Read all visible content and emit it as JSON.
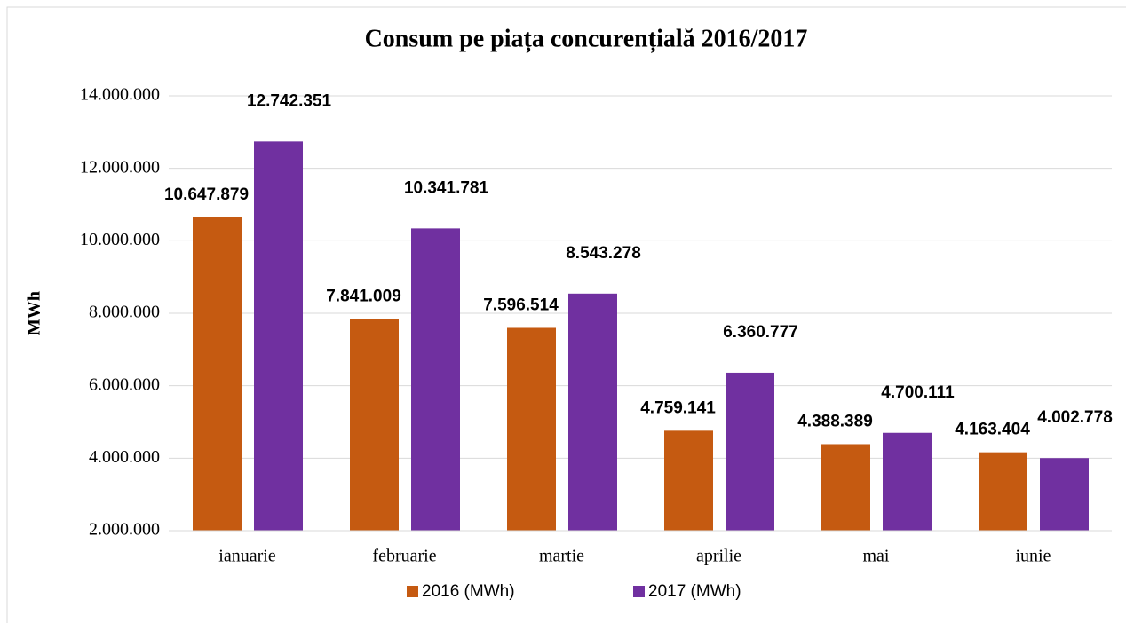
{
  "chart_data": {
    "type": "bar",
    "title": "Consum pe piața concurențială 2016/2017",
    "y_label": "MWh",
    "categories": [
      "ianuarie",
      "februarie",
      "martie",
      "aprilie",
      "mai",
      "iunie"
    ],
    "series": [
      {
        "name": "2016 (MWh)",
        "color": "#c55a11",
        "values": [
          10647879,
          7841009,
          7596514,
          4759141,
          4388389,
          4163404
        ],
        "value_labels": [
          "10.647.879",
          "7.841.009",
          "7.596.514",
          "4.759.141",
          "4.388.389",
          "4.163.404"
        ]
      },
      {
        "name": "2017 (MWh)",
        "color": "#7030a0",
        "values": [
          12742351,
          10341781,
          8543278,
          6360777,
          4700111,
          4002778
        ],
        "value_labels": [
          "12.742.351",
          "10.341.781",
          "8.543.278",
          "6.360.777",
          "4.700.111",
          "4.002.778"
        ]
      }
    ],
    "ylim": [
      2000000,
      14000000
    ],
    "yticks": [
      {
        "value": 2000000,
        "label": "2.000.000"
      },
      {
        "value": 4000000,
        "label": "4.000.000"
      },
      {
        "value": 6000000,
        "label": "6.000.000"
      },
      {
        "value": 8000000,
        "label": "8.000.000"
      },
      {
        "value": 10000000,
        "label": "10.000.000"
      },
      {
        "value": 12000000,
        "label": "12.000.000"
      },
      {
        "value": 14000000,
        "label": "14.000.000"
      }
    ],
    "grid": true
  }
}
